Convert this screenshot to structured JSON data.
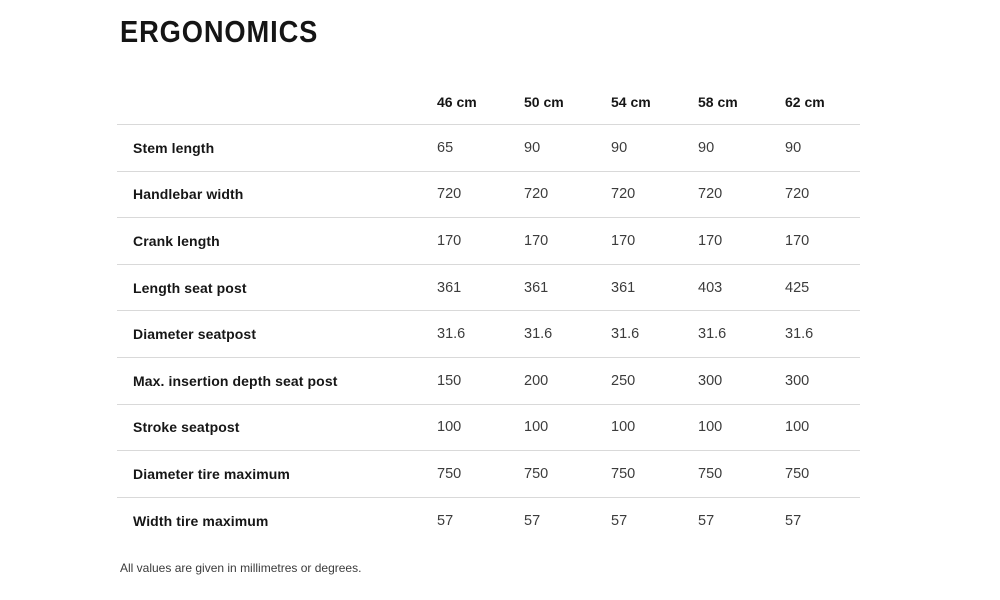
{
  "page": {
    "title": "ERGONOMICS",
    "footnote": "All values are given in millimetres or degrees."
  },
  "table": {
    "columns": [
      "46 cm",
      "50 cm",
      "54 cm",
      "58 cm",
      "62 cm"
    ],
    "rows": [
      {
        "label": "Stem length",
        "values": [
          "65",
          "90",
          "90",
          "90",
          "90"
        ]
      },
      {
        "label": "Handlebar width",
        "values": [
          "720",
          "720",
          "720",
          "720",
          "720"
        ]
      },
      {
        "label": "Crank length",
        "values": [
          "170",
          "170",
          "170",
          "170",
          "170"
        ]
      },
      {
        "label": "Length seat post",
        "values": [
          "361",
          "361",
          "361",
          "403",
          "425"
        ]
      },
      {
        "label": "Diameter seatpost",
        "values": [
          "31.6",
          "31.6",
          "31.6",
          "31.6",
          "31.6"
        ]
      },
      {
        "label": "Max. insertion depth seat post",
        "values": [
          "150",
          "200",
          "250",
          "300",
          "300"
        ]
      },
      {
        "label": "Stroke seatpost",
        "values": [
          "100",
          "100",
          "100",
          "100",
          "100"
        ]
      },
      {
        "label": "Diameter tire maximum",
        "values": [
          "750",
          "750",
          "750",
          "750",
          "750"
        ]
      },
      {
        "label": "Width tire maximum",
        "values": [
          "57",
          "57",
          "57",
          "57",
          "57"
        ]
      }
    ]
  },
  "colors": {
    "text_primary": "#161616",
    "text_secondary": "#3c3c3c",
    "divider": "#d9d9d9",
    "background": "#ffffff"
  }
}
